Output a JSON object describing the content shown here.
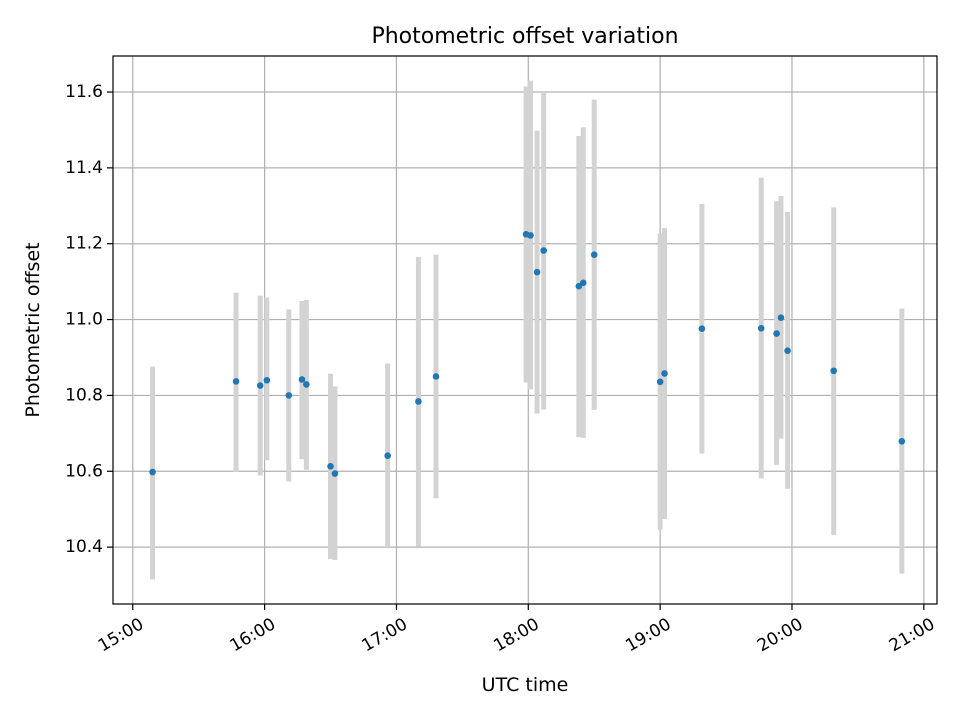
{
  "chart_data": {
    "type": "scatter",
    "title": "Photometric offset variation",
    "xlabel": "UTC time",
    "ylabel": "Photometric offset",
    "xlim": [
      "14:51",
      "21:06"
    ],
    "ylim": [
      10.25,
      11.695
    ],
    "grid": true,
    "xticks": [
      "15:00",
      "16:00",
      "17:00",
      "18:00",
      "19:00",
      "20:00",
      "21:00"
    ],
    "yticks": [
      "10.4",
      "10.6",
      "10.8",
      "11.0",
      "11.2",
      "11.4",
      "11.6"
    ],
    "colors": {
      "point": "#1f77b4",
      "errorbar": "#d3d3d3",
      "grid": "#b0b0b0",
      "axes": "#000000"
    },
    "series": [
      {
        "points": [
          {
            "x": "15:09",
            "y": 10.598,
            "ymin": 10.315,
            "ymax": 10.876
          },
          {
            "x": "15:47",
            "y": 10.837,
            "ymin": 10.598,
            "ymax": 11.071
          },
          {
            "x": "15:58",
            "y": 10.826,
            "ymin": 10.589,
            "ymax": 11.063
          },
          {
            "x": "16:01",
            "y": 10.84,
            "ymin": 10.629,
            "ymax": 11.058
          },
          {
            "x": "16:11",
            "y": 10.8,
            "ymin": 10.573,
            "ymax": 11.027
          },
          {
            "x": "16:17",
            "y": 10.842,
            "ymin": 10.632,
            "ymax": 11.049
          },
          {
            "x": "16:19",
            "y": 10.829,
            "ymin": 10.604,
            "ymax": 11.052
          },
          {
            "x": "16:30",
            "y": 10.613,
            "ymin": 10.369,
            "ymax": 10.857
          },
          {
            "x": "16:32",
            "y": 10.594,
            "ymin": 10.366,
            "ymax": 10.824
          },
          {
            "x": "16:56",
            "y": 10.641,
            "ymin": 10.4,
            "ymax": 10.884
          },
          {
            "x": "17:10",
            "y": 10.784,
            "ymin": 10.401,
            "ymax": 11.165
          },
          {
            "x": "17:18",
            "y": 10.85,
            "ymin": 10.529,
            "ymax": 11.171
          },
          {
            "x": "17:59",
            "y": 11.225,
            "ymin": 10.834,
            "ymax": 11.615
          },
          {
            "x": "18:01",
            "y": 11.222,
            "ymin": 10.816,
            "ymax": 11.63
          },
          {
            "x": "18:04",
            "y": 11.125,
            "ymin": 10.752,
            "ymax": 11.498
          },
          {
            "x": "18:07",
            "y": 11.182,
            "ymin": 10.763,
            "ymax": 11.6
          },
          {
            "x": "18:23",
            "y": 11.088,
            "ymin": 10.69,
            "ymax": 11.484
          },
          {
            "x": "18:25",
            "y": 11.097,
            "ymin": 10.688,
            "ymax": 11.507
          },
          {
            "x": "18:30",
            "y": 11.171,
            "ymin": 10.762,
            "ymax": 11.58
          },
          {
            "x": "19:00",
            "y": 10.836,
            "ymin": 10.446,
            "ymax": 11.227
          },
          {
            "x": "19:02",
            "y": 10.858,
            "ymin": 10.474,
            "ymax": 11.241
          },
          {
            "x": "19:19",
            "y": 10.976,
            "ymin": 10.647,
            "ymax": 11.305
          },
          {
            "x": "19:46",
            "y": 10.977,
            "ymin": 10.581,
            "ymax": 11.374
          },
          {
            "x": "19:53",
            "y": 10.963,
            "ymin": 10.617,
            "ymax": 11.312
          },
          {
            "x": "19:55",
            "y": 11.005,
            "ymin": 10.686,
            "ymax": 11.326
          },
          {
            "x": "19:58",
            "y": 10.918,
            "ymin": 10.554,
            "ymax": 11.284
          },
          {
            "x": "20:19",
            "y": 10.865,
            "ymin": 10.432,
            "ymax": 11.296
          },
          {
            "x": "20:50",
            "y": 10.679,
            "ymin": 10.33,
            "ymax": 11.029
          }
        ]
      }
    ]
  }
}
